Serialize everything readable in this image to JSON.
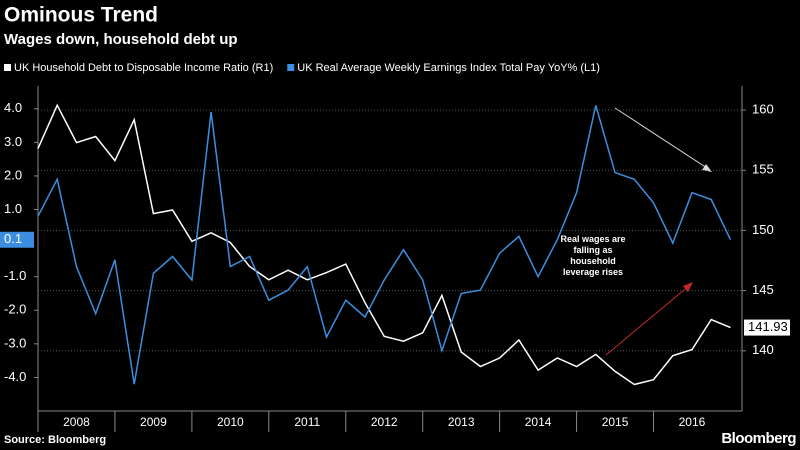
{
  "chart_data": {
    "type": "line",
    "title": "Ominous Trend",
    "subtitle": "Wages down, household debt up",
    "source": "Source: Bloomberg",
    "brand": "Bloomberg",
    "annotation": "Real wages are falling as household leverage rises",
    "x": [
      2008,
      2008.25,
      2008.5,
      2008.75,
      2009,
      2009.25,
      2009.5,
      2009.75,
      2010,
      2010.25,
      2010.5,
      2010.75,
      2011,
      2011.25,
      2011.5,
      2011.75,
      2012,
      2012.25,
      2012.5,
      2012.75,
      2013,
      2013.25,
      2013.5,
      2013.75,
      2014,
      2014.25,
      2014.5,
      2014.75,
      2015,
      2015.25,
      2015.5,
      2015.75,
      2016,
      2016.25,
      2016.5,
      2016.75,
      2017
    ],
    "xlim": [
      2008,
      2017.15
    ],
    "xticks": [
      2008,
      2009,
      2010,
      2011,
      2012,
      2013,
      2014,
      2015,
      2016
    ],
    "ylim": [
      -5,
      4.5
    ],
    "yticks": [
      {
        "value": -4,
        "label": "-4.0"
      },
      {
        "value": -3,
        "label": "-3.0"
      },
      {
        "value": -2,
        "label": "-2.0"
      },
      {
        "value": -1,
        "label": "-1.0"
      },
      {
        "value": 1,
        "label": "1.0"
      },
      {
        "value": 2,
        "label": "2.0"
      },
      {
        "value": 3,
        "label": "3.0"
      },
      {
        "value": 4,
        "label": "4.0"
      }
    ],
    "y2lim": [
      135,
      161.5
    ],
    "y2ticks": [
      140,
      145,
      150,
      155,
      160
    ],
    "grid": true,
    "series": [
      {
        "name": "UK Household Debt to Disposable Income Ratio  (R1)",
        "color": "#ffffff",
        "axis": "y2",
        "values": [
          156.8,
          160.4,
          157.3,
          157.8,
          155.8,
          159.2,
          151.4,
          151.7,
          149.1,
          149.8,
          149.0,
          147.0,
          145.9,
          146.7,
          145.9,
          146.5,
          147.2,
          144.0,
          141.2,
          140.8,
          141.5,
          144.6,
          139.9,
          138.7,
          139.4,
          140.9,
          138.4,
          139.4,
          138.7,
          139.7,
          138.3,
          137.2,
          137.6,
          139.6,
          140.1,
          142.6,
          141.93
        ]
      },
      {
        "name": "UK Real Average Weekly Earnings Index Total Pay YoY%  (L1)",
        "color": "#3c8fe0",
        "axis": "y",
        "values": [
          0.8,
          1.9,
          -0.7,
          -2.1,
          -0.5,
          -4.2,
          -0.9,
          -0.4,
          -1.1,
          3.9,
          -0.7,
          -0.4,
          -1.7,
          -1.4,
          -0.7,
          -2.8,
          -1.7,
          -2.2,
          -1.1,
          -0.2,
          -1.1,
          -3.2,
          -1.5,
          -1.4,
          -0.3,
          0.2,
          -1.0,
          0.1,
          1.5,
          4.1,
          2.1,
          1.9,
          1.2,
          0.0,
          1.5,
          1.3,
          0.1
        ]
      }
    ]
  }
}
